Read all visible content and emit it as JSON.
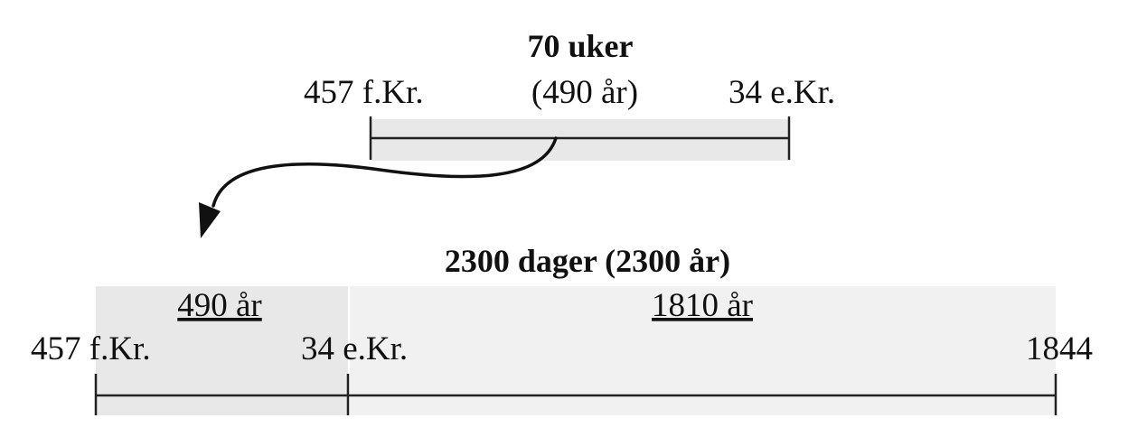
{
  "colors": {
    "band": "#e8e8e8",
    "band_light": "#f1f1f1",
    "line": "#222222",
    "text": "#111111"
  },
  "top": {
    "title": "70 uker",
    "start_label": "457 f.Kr.",
    "span_label": "(490 år)",
    "end_label": "34 e.Kr."
  },
  "bottom": {
    "title": "2300 dager (2300 år)",
    "segment1_label": "490 år",
    "segment2_label": "1810 år",
    "start_label": "457 f.Kr.",
    "mid_label": "34 e.Kr.",
    "end_label": "1844"
  },
  "arrow": {
    "icon": "curved-arrow-icon"
  }
}
